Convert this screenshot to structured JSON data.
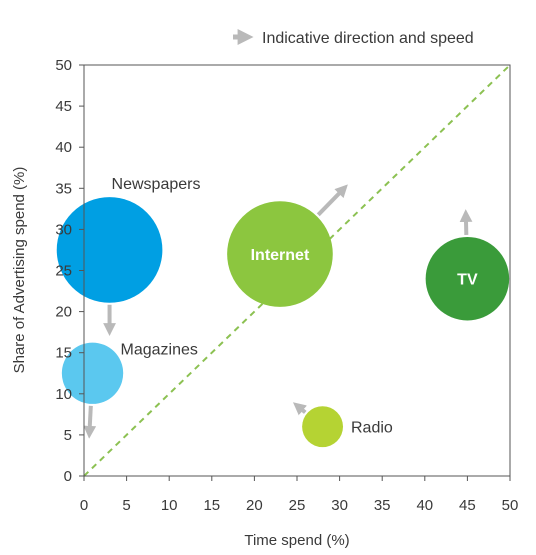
{
  "chart_data": {
    "type": "scatter",
    "xlabel": "Time spend (%)",
    "ylabel": "Share of Advertising spend (%)",
    "xlim": [
      0,
      50
    ],
    "ylim": [
      0,
      50
    ],
    "x_ticks": [
      0,
      5,
      10,
      15,
      20,
      25,
      30,
      35,
      40,
      45,
      50
    ],
    "y_ticks": [
      0,
      5,
      10,
      15,
      20,
      25,
      30,
      35,
      40,
      45,
      50
    ],
    "grid": false,
    "legend": {
      "text": "Indicative direction and speed",
      "position": "top-right"
    },
    "reference_line": {
      "from": [
        0,
        0
      ],
      "to": [
        50,
        50
      ],
      "style": "dashed",
      "color": "#8cc152"
    },
    "points": [
      {
        "name": "Newspapers",
        "x": 3,
        "y": 27.5,
        "color": "#009fe3",
        "label_position": "above",
        "arrow_to": [
          3,
          17
        ]
      },
      {
        "name": "Magazines",
        "x": 1,
        "y": 12.5,
        "color": "#5bc8ef",
        "label_position": "right",
        "arrow_to": [
          0.6,
          4.5
        ]
      },
      {
        "name": "Internet",
        "x": 23,
        "y": 27,
        "color": "#8cc63f",
        "label_position": "inside",
        "arrow_to": [
          31,
          35.5
        ]
      },
      {
        "name": "TV",
        "x": 45,
        "y": 24,
        "color": "#3a9b3a",
        "label_position": "inside",
        "arrow_to": [
          44.8,
          32.5
        ]
      },
      {
        "name": "Radio",
        "x": 28,
        "y": 6,
        "color": "#b5d333",
        "label_position": "right",
        "arrow_to": [
          24.5,
          9
        ]
      }
    ]
  },
  "style": {
    "arrow_color": "#b9b9b9",
    "axis_color": "#555555",
    "bubble_radii_data_units": {
      "Newspapers": 6.2,
      "Magazines": 3.6,
      "Internet": 6.2,
      "TV": 4.9,
      "Radio": 2.4
    }
  }
}
